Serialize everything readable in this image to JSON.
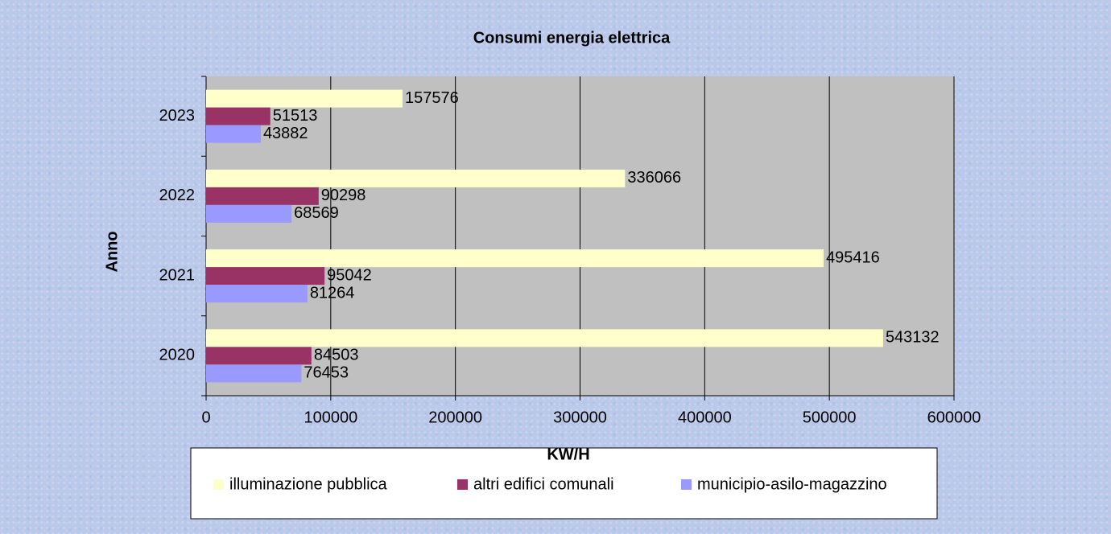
{
  "chart_data": {
    "type": "hbar",
    "title": "Consumi energia elettrica",
    "x_label": "KW/H",
    "y_label": "Anno",
    "categories": [
      "2023",
      "2022",
      "2021",
      "2020"
    ],
    "series": [
      {
        "name": "illuminazione pubblica",
        "color": "#ffffcc",
        "values": [
          157576,
          336066,
          495416,
          543132
        ]
      },
      {
        "name": "altri edifici comunali",
        "color": "#993366",
        "values": [
          51513,
          90298,
          95042,
          84503
        ]
      },
      {
        "name": "municipio-asilo-magazzino",
        "color": "#9999ff",
        "values": [
          43882,
          68569,
          81264,
          76453
        ]
      }
    ],
    "xlim": [
      0,
      600000
    ],
    "xticks": [
      0,
      100000,
      200000,
      300000,
      400000,
      500000,
      600000
    ],
    "grid": true,
    "legend": "bottom",
    "plot_background": "#c0c0c0"
  }
}
